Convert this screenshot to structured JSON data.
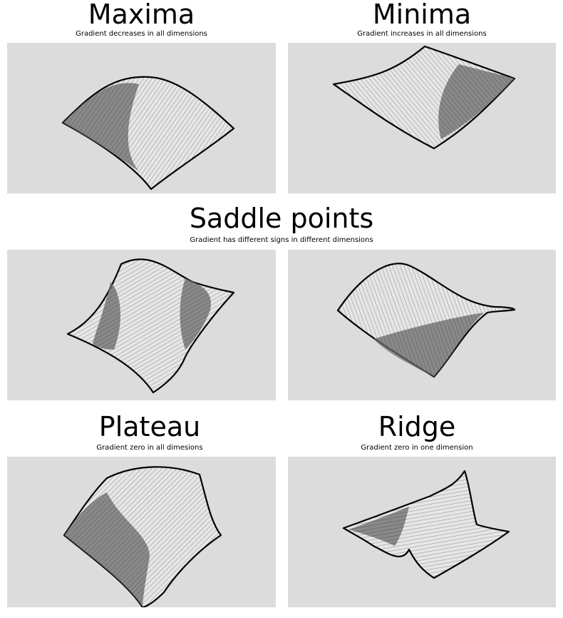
{
  "maxima": {
    "title": "Maxima",
    "subtitle": "Gradient decreases in all dimensions"
  },
  "minima": {
    "title": "Minima",
    "subtitle": "Gradient increases in all dimensions"
  },
  "saddle": {
    "title": "Saddle points",
    "subtitle": "Gradient has different signs in different dimensions"
  },
  "plateau": {
    "title": "Plateau",
    "subtitle": "Gradient zero in all dimesions"
  },
  "ridge": {
    "title": "Ridge",
    "subtitle": "Gradient zero in one dimension"
  },
  "colors": {
    "panel_bg": "#dcdcdc",
    "surface": "#e6e6e6",
    "outline": "#000000"
  }
}
